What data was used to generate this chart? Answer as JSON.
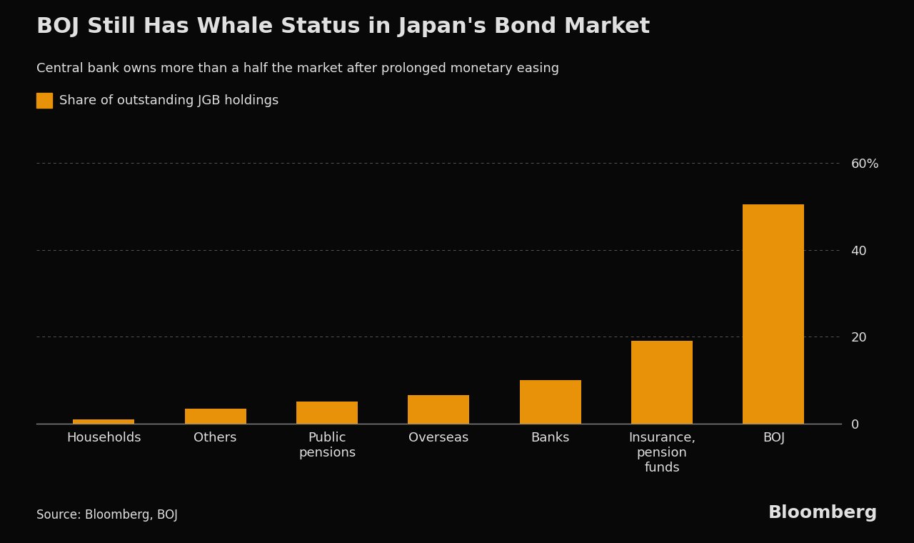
{
  "title": "BOJ Still Has Whale Status in Japan's Bond Market",
  "subtitle": "Central bank owns more than a half the market after prolonged monetary easing",
  "legend_label": "Share of outstanding JGB holdings",
  "source": "Source: Bloomberg, BOJ",
  "bloomberg_label": "Bloomberg",
  "categories": [
    "Households",
    "Others",
    "Public\npensions",
    "Overseas",
    "Banks",
    "Insurance,\npension\nfunds",
    "BOJ"
  ],
  "values": [
    1.0,
    3.5,
    5.0,
    6.5,
    10.0,
    19.0,
    50.5
  ],
  "bar_color": "#E8920A",
  "background_color": "#080808",
  "text_color": "#e0e0e0",
  "grid_color": "#555555",
  "axis_color": "#888888",
  "yticks": [
    0,
    20,
    40,
    60
  ],
  "ylim": [
    0,
    65
  ],
  "title_fontsize": 22,
  "subtitle_fontsize": 13,
  "legend_fontsize": 13,
  "tick_fontsize": 13,
  "source_fontsize": 12,
  "bloomberg_fontsize": 18
}
